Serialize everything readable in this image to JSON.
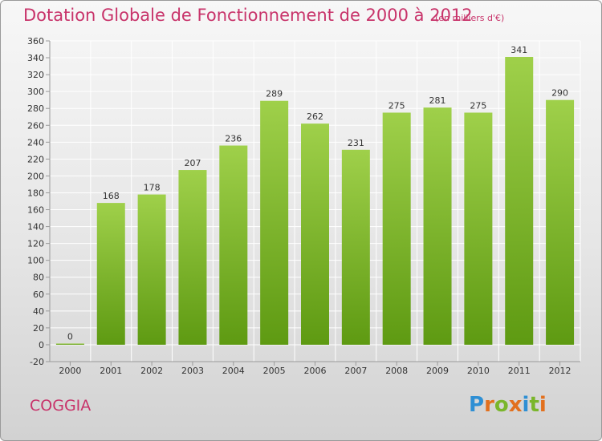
{
  "header": {
    "title": "Dotation Globale de Fonctionnement de 2000 à 2012",
    "unit": "(en milliers d'€)"
  },
  "footer": {
    "commune": "COGGIA",
    "logo": {
      "letters": [
        "P",
        "r",
        "o",
        "x",
        "i",
        "t",
        "i"
      ],
      "colors": [
        "#2e8fd4",
        "#e2701e",
        "#7ab62b",
        "#e2701e",
        "#2e8fd4",
        "#7ab62b",
        "#e2701e"
      ]
    }
  },
  "colors": {
    "title": "#c8336a",
    "bar_top": "#9fd04a",
    "bar_bottom": "#5e9a12"
  },
  "chart_data": {
    "type": "bar",
    "categories": [
      "2000",
      "2001",
      "2002",
      "2003",
      "2004",
      "2005",
      "2006",
      "2007",
      "2008",
      "2009",
      "2010",
      "2011",
      "2012"
    ],
    "values": [
      0,
      168,
      178,
      207,
      236,
      289,
      262,
      231,
      275,
      281,
      275,
      341,
      290
    ],
    "ylim": [
      -20,
      360
    ],
    "yticks": [
      -20,
      0,
      20,
      40,
      60,
      80,
      100,
      120,
      140,
      160,
      180,
      200,
      220,
      240,
      260,
      280,
      300,
      320,
      340,
      360
    ],
    "grid": true
  }
}
